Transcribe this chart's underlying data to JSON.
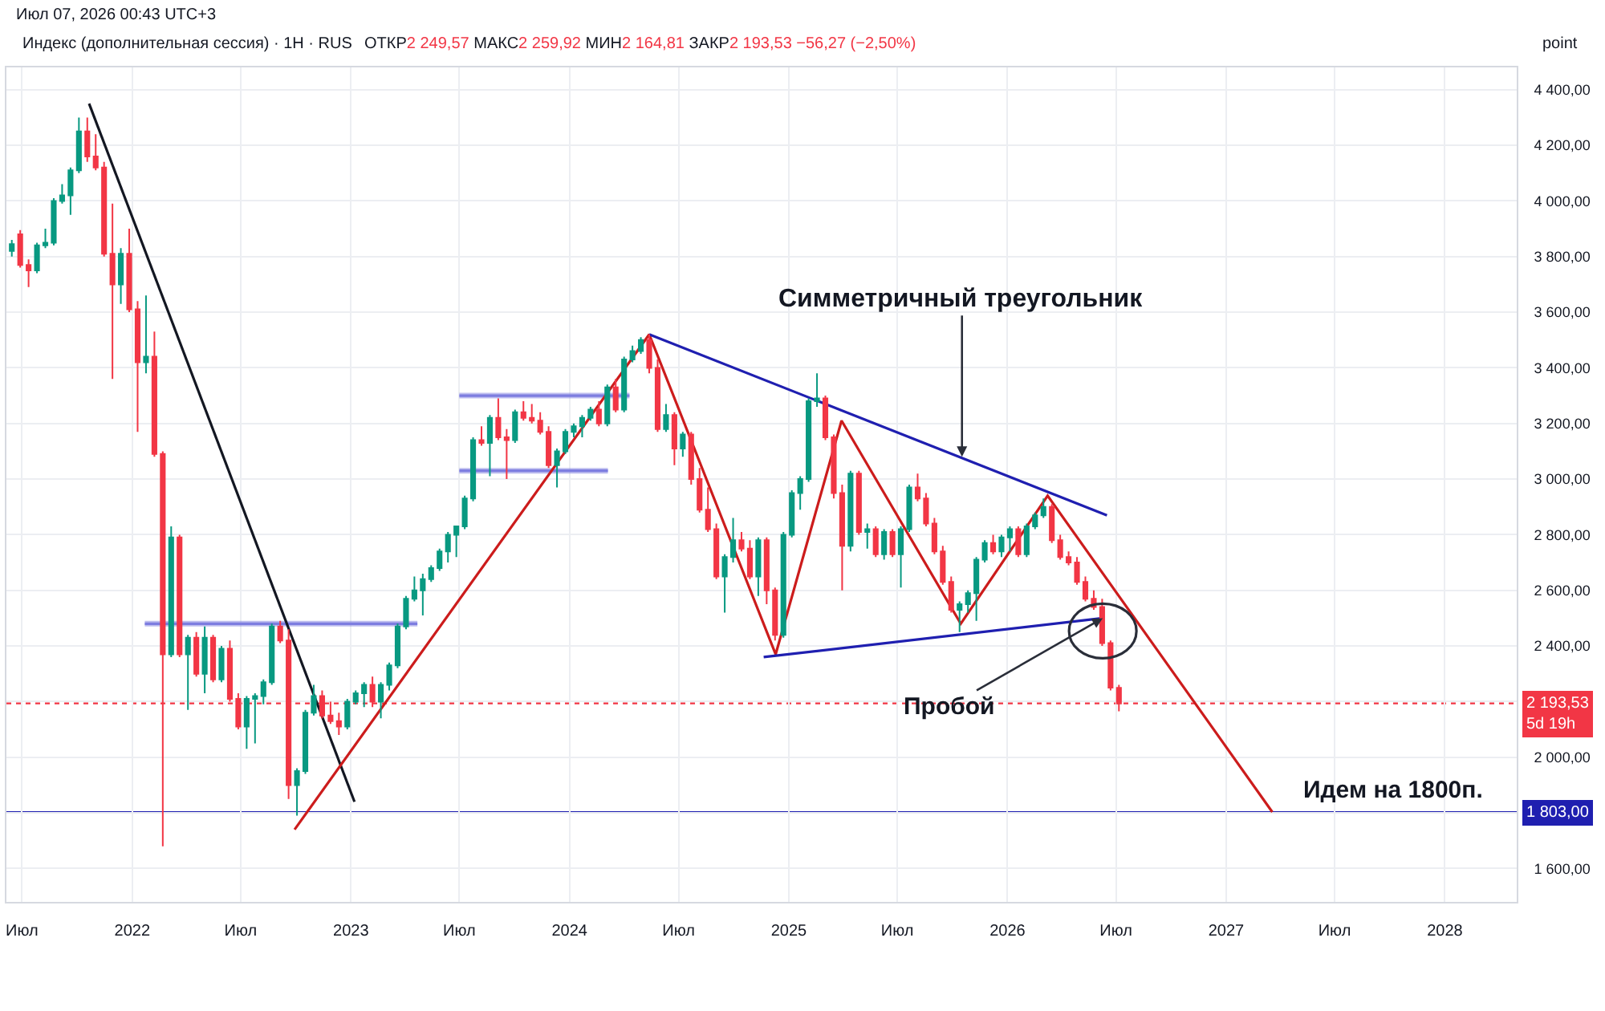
{
  "chart_data": {
    "type": "candlestick",
    "title": "Индекс (дополнительная сессия) · 1H · RUS",
    "subtitle": "ОТКР2 249,57 МАКС2 259,92 МИН2 164,81 ЗАКР2 193,53 −56,27 (−2,50%)",
    "colors": [
      "#089981",
      "#f23645",
      "#f23645",
      "#089981",
      "#089981",
      "#089981",
      "#089981",
      "#089981",
      "#089981",
      "#f23645",
      "#f23645",
      "#f23645",
      "#f23645",
      "#089981",
      "#f23645",
      "#f23645",
      "#089981",
      "#f23645",
      "#f23645",
      "#089981",
      "#f23645",
      "#089981",
      "#f23645",
      "#089981",
      "#f23645",
      "#089981",
      "#f23645",
      "#f23645",
      "#089981",
      "#089981",
      "#089981",
      "#089981",
      "#f23645",
      "#f23645",
      "#089981",
      "#089981",
      "#089981",
      "#f23645",
      "#f23645",
      "#f23645",
      "#089981",
      "#089981",
      "#089981",
      "#f23645",
      "#089981",
      "#089981",
      "#089981",
      "#089981",
      "#089981",
      "#089981",
      "#089981",
      "#089981",
      "#089981",
      "#089981",
      "#089981",
      "#089981",
      "#f23645",
      "#089981",
      "#f23645",
      "#f23645",
      "#089981",
      "#f23645",
      "#f23645",
      "#f23645",
      "#f23645",
      "#089981",
      "#089981",
      "#089981",
      "#089981",
      "#089981",
      "#f23645",
      "#089981",
      "#f23645",
      "#089981",
      "#089981",
      "#089981",
      "#f23645",
      "#f23645",
      "#089981",
      "#f23645",
      "#089981",
      "#f23645",
      "#f23645",
      "#f23645",
      "#f23645",
      "#089981",
      "#089981",
      "#f23645",
      "#f23645",
      "#089981",
      "#f23645",
      "#f23645",
      "#089981",
      "#089981",
      "#089981",
      "#089981",
      "#089981",
      "#f23645",
      "#f23645",
      "#f23645",
      "#089981",
      "#f23645",
      "#089981",
      "#f23645",
      "#089981",
      "#f23645",
      "#089981",
      "#089981",
      "#f23645",
      "#f23645",
      "#f23645",
      "#f23645",
      "#f23645",
      "#089981",
      "#089981",
      "#089981",
      "#089981",
      "#f23645",
      "#089981",
      "#089981",
      "#f23645",
      "#089981",
      "#089981",
      "#089981",
      "#f23645",
      "#f23645",
      "#f23645",
      "#f23645",
      "#f23645",
      "#f23645",
      "#f23645",
      "#f23645",
      "#f23645"
    ],
    "x": [
      "2021-06-14",
      "2021-06-28",
      "2021-07-12",
      "2021-07-26",
      "2021-08-09",
      "2021-08-23",
      "2021-09-06",
      "2021-09-20",
      "2021-10-04",
      "2021-10-18",
      "2021-11-01",
      "2021-11-15",
      "2021-11-29",
      "2021-12-13",
      "2021-12-27",
      "2022-01-10",
      "2022-01-24",
      "2022-02-07",
      "2022-02-21",
      "2022-03-07",
      "2022-03-21",
      "2022-04-04",
      "2022-04-18",
      "2022-05-02",
      "2022-05-16",
      "2022-05-30",
      "2022-06-13",
      "2022-06-27",
      "2022-07-11",
      "2022-07-25",
      "2022-08-08",
      "2022-08-22",
      "2022-09-05",
      "2022-09-19",
      "2022-10-03",
      "2022-10-17",
      "2022-10-31",
      "2022-11-14",
      "2022-11-28",
      "2022-12-12",
      "2022-12-26",
      "2023-01-09",
      "2023-01-23",
      "2023-02-06",
      "2023-02-20",
      "2023-03-06",
      "2023-03-20",
      "2023-04-03",
      "2023-04-17",
      "2023-05-01",
      "2023-05-15",
      "2023-05-29",
      "2023-06-12",
      "2023-06-26",
      "2023-07-10",
      "2023-07-24",
      "2023-08-07",
      "2023-08-21",
      "2023-09-04",
      "2023-09-18",
      "2023-10-02",
      "2023-10-16",
      "2023-10-30",
      "2023-11-13",
      "2023-11-27",
      "2023-12-11",
      "2023-12-25",
      "2024-01-08",
      "2024-01-22",
      "2024-02-05",
      "2024-02-19",
      "2024-03-04",
      "2024-03-18",
      "2024-04-01",
      "2024-04-15",
      "2024-04-29",
      "2024-05-13",
      "2024-05-27",
      "2024-06-10",
      "2024-06-24",
      "2024-07-08",
      "2024-07-22",
      "2024-08-05",
      "2024-08-19",
      "2024-09-02",
      "2024-09-16",
      "2024-09-30",
      "2024-10-14",
      "2024-10-28",
      "2024-11-11",
      "2024-11-25",
      "2024-12-09",
      "2024-12-23",
      "2025-01-06",
      "2025-01-20",
      "2025-02-03",
      "2025-02-17",
      "2025-03-03",
      "2025-03-17",
      "2025-03-31",
      "2025-04-14",
      "2025-04-28",
      "2025-05-12",
      "2025-05-26",
      "2025-06-09",
      "2025-06-23",
      "2025-07-07",
      "2025-07-21",
      "2025-08-04",
      "2025-08-18",
      "2025-09-01",
      "2025-09-15",
      "2025-09-29",
      "2025-10-13",
      "2025-10-27",
      "2025-11-10",
      "2025-11-24",
      "2025-12-08",
      "2025-12-22",
      "2026-01-05",
      "2026-01-19",
      "2026-02-02",
      "2026-02-16",
      "2026-03-02",
      "2026-03-16",
      "2026-03-30",
      "2026-04-13",
      "2026-04-27",
      "2026-05-11",
      "2026-05-25",
      "2026-06-08",
      "2026-06-22",
      "2026-07-06"
    ],
    "ohlc": [
      [
        3820,
        3860,
        3800,
        3845
      ],
      [
        3880,
        3895,
        3760,
        3770
      ],
      [
        3770,
        3790,
        3690,
        3750
      ],
      [
        3750,
        3850,
        3740,
        3840
      ],
      [
        3840,
        3900,
        3830,
        3850
      ],
      [
        3850,
        4010,
        3840,
        4000
      ],
      [
        4000,
        4060,
        3990,
        4020
      ],
      [
        4020,
        4120,
        3950,
        4110
      ],
      [
        4110,
        4300,
        4100,
        4250
      ],
      [
        4250,
        4300,
        4140,
        4160
      ],
      [
        4160,
        4240,
        4110,
        4120
      ],
      [
        4120,
        4140,
        3800,
        3810
      ],
      [
        3810,
        3990,
        3360,
        3700
      ],
      [
        3700,
        3830,
        3630,
        3810
      ],
      [
        3810,
        3900,
        3600,
        3610
      ],
      [
        3610,
        3640,
        3170,
        3420
      ],
      [
        3420,
        3660,
        3380,
        3440
      ],
      [
        3440,
        3530,
        3080,
        3090
      ],
      [
        3090,
        3100,
        1680,
        2370
      ],
      [
        2370,
        2830,
        2360,
        2790
      ],
      [
        2790,
        2800,
        2360,
        2370
      ],
      [
        2370,
        2440,
        2170,
        2430
      ],
      [
        2430,
        2450,
        2290,
        2300
      ],
      [
        2300,
        2470,
        2230,
        2430
      ],
      [
        2430,
        2440,
        2270,
        2280
      ],
      [
        2280,
        2400,
        2270,
        2390
      ],
      [
        2390,
        2420,
        2200,
        2210
      ],
      [
        2210,
        2230,
        2100,
        2110
      ],
      [
        2110,
        2220,
        2030,
        2210
      ],
      [
        2210,
        2230,
        2050,
        2220
      ],
      [
        2220,
        2280,
        2190,
        2270
      ],
      [
        2270,
        2480,
        2260,
        2470
      ],
      [
        2470,
        2490,
        2410,
        2420
      ],
      [
        2420,
        2460,
        1850,
        1900
      ],
      [
        1900,
        1960,
        1790,
        1950
      ],
      [
        1950,
        2170,
        1940,
        2160
      ],
      [
        2160,
        2260,
        2150,
        2220
      ],
      [
        2220,
        2240,
        2140,
        2150
      ],
      [
        2150,
        2200,
        2120,
        2130
      ],
      [
        2130,
        2160,
        2080,
        2110
      ],
      [
        2110,
        2210,
        2100,
        2200
      ],
      [
        2200,
        2240,
        2190,
        2230
      ],
      [
        2230,
        2270,
        2180,
        2260
      ],
      [
        2260,
        2290,
        2180,
        2200
      ],
      [
        2200,
        2270,
        2140,
        2260
      ],
      [
        2260,
        2340,
        2240,
        2330
      ],
      [
        2330,
        2480,
        2320,
        2470
      ],
      [
        2470,
        2580,
        2460,
        2570
      ],
      [
        2570,
        2650,
        2560,
        2600
      ],
      [
        2600,
        2660,
        2510,
        2640
      ],
      [
        2640,
        2690,
        2630,
        2680
      ],
      [
        2680,
        2750,
        2670,
        2740
      ],
      [
        2740,
        2810,
        2700,
        2800
      ],
      [
        2800,
        2830,
        2720,
        2830
      ],
      [
        2830,
        2940,
        2820,
        2930
      ],
      [
        2930,
        3150,
        2920,
        3140
      ],
      [
        3140,
        3190,
        3120,
        3130
      ],
      [
        3130,
        3230,
        3010,
        3220
      ],
      [
        3220,
        3290,
        3140,
        3150
      ],
      [
        3150,
        3180,
        3000,
        3140
      ],
      [
        3140,
        3250,
        3130,
        3240
      ],
      [
        3240,
        3280,
        3210,
        3220
      ],
      [
        3220,
        3270,
        3200,
        3210
      ],
      [
        3210,
        3240,
        3160,
        3170
      ],
      [
        3170,
        3190,
        3040,
        3050
      ],
      [
        3050,
        3110,
        2970,
        3100
      ],
      [
        3100,
        3180,
        3090,
        3170
      ],
      [
        3170,
        3200,
        3150,
        3190
      ],
      [
        3190,
        3230,
        3150,
        3220
      ],
      [
        3220,
        3260,
        3210,
        3250
      ],
      [
        3250,
        3280,
        3190,
        3200
      ],
      [
        3200,
        3340,
        3190,
        3330
      ],
      [
        3330,
        3360,
        3240,
        3250
      ],
      [
        3250,
        3440,
        3240,
        3430
      ],
      [
        3430,
        3480,
        3420,
        3460
      ],
      [
        3460,
        3510,
        3450,
        3500
      ],
      [
        3500,
        3520,
        3380,
        3400
      ],
      [
        3400,
        3430,
        3170,
        3180
      ],
      [
        3180,
        3270,
        3170,
        3230
      ],
      [
        3230,
        3240,
        3050,
        3110
      ],
      [
        3110,
        3170,
        3080,
        3160
      ],
      [
        3160,
        3170,
        2980,
        3000
      ],
      [
        3000,
        3040,
        2880,
        2890
      ],
      [
        2890,
        2970,
        2810,
        2820
      ],
      [
        2820,
        2840,
        2640,
        2650
      ],
      [
        2650,
        2730,
        2520,
        2720
      ],
      [
        2720,
        2860,
        2700,
        2780
      ],
      [
        2780,
        2810,
        2740,
        2750
      ],
      [
        2750,
        2780,
        2640,
        2650
      ],
      [
        2650,
        2790,
        2580,
        2780
      ],
      [
        2780,
        2790,
        2550,
        2600
      ],
      [
        2600,
        2610,
        2420,
        2440
      ],
      [
        2440,
        2810,
        2430,
        2800
      ],
      [
        2800,
        2960,
        2790,
        2950
      ],
      [
        2950,
        3010,
        2890,
        3000
      ],
      [
        3000,
        3290,
        2990,
        3280
      ],
      [
        3280,
        3380,
        3260,
        3290
      ],
      [
        3290,
        3300,
        3140,
        3150
      ],
      [
        3150,
        3160,
        2930,
        2950
      ],
      [
        2950,
        2980,
        2600,
        2760
      ],
      [
        2760,
        3030,
        2740,
        3020
      ],
      [
        3020,
        3030,
        2800,
        2810
      ],
      [
        2810,
        2840,
        2750,
        2820
      ],
      [
        2820,
        2830,
        2720,
        2730
      ],
      [
        2730,
        2820,
        2710,
        2810
      ],
      [
        2810,
        2820,
        2720,
        2730
      ],
      [
        2730,
        2830,
        2610,
        2820
      ],
      [
        2820,
        2980,
        2810,
        2970
      ],
      [
        2970,
        3020,
        2920,
        2930
      ],
      [
        2930,
        2950,
        2830,
        2840
      ],
      [
        2840,
        2860,
        2730,
        2740
      ],
      [
        2740,
        2760,
        2620,
        2630
      ],
      [
        2630,
        2650,
        2520,
        2530
      ],
      [
        2530,
        2560,
        2450,
        2550
      ],
      [
        2550,
        2600,
        2520,
        2590
      ],
      [
        2590,
        2720,
        2490,
        2710
      ],
      [
        2710,
        2780,
        2700,
        2770
      ],
      [
        2770,
        2800,
        2730,
        2740
      ],
      [
        2740,
        2800,
        2720,
        2790
      ],
      [
        2790,
        2830,
        2740,
        2820
      ],
      [
        2820,
        2830,
        2720,
        2730
      ],
      [
        2730,
        2840,
        2720,
        2830
      ],
      [
        2830,
        2880,
        2820,
        2870
      ],
      [
        2870,
        2930,
        2860,
        2900
      ],
      [
        2900,
        2910,
        2770,
        2780
      ],
      [
        2780,
        2800,
        2710,
        2720
      ],
      [
        2720,
        2740,
        2690,
        2700
      ],
      [
        2700,
        2720,
        2620,
        2630
      ],
      [
        2630,
        2650,
        2560,
        2570
      ],
      [
        2570,
        2600,
        2530,
        2540
      ],
      [
        2540,
        2570,
        2400,
        2410
      ],
      [
        2410,
        2420,
        2240,
        2250
      ],
      [
        2249.57,
        2259.92,
        2164.81,
        2193.53
      ]
    ],
    "series": [
      {
        "type": "line",
        "color": "#7d7de0",
        "x": [
          "2022-01-22",
          "2023-04-22"
        ],
        "values": [
          2480,
          2480
        ],
        "lower": [
          2470,
          2470
        ],
        "upper": [
          2490,
          2490
        ]
      },
      {
        "type": "line",
        "color": "#7d7de0",
        "x": [
          "2023-07-01",
          "2024-04-10"
        ],
        "values": [
          3300,
          3300
        ],
        "lower": [
          3290,
          3290
        ],
        "upper": [
          3310,
          3310
        ]
      },
      {
        "type": "line",
        "color": "#7d7de0",
        "x": [
          "2023-07-01",
          "2024-03-05"
        ],
        "values": [
          3030,
          3030
        ],
        "lower": [
          3020,
          3020
        ],
        "upper": [
          3040,
          3040
        ]
      },
      {
        "type": "line",
        "color": "#131722",
        "x": [
          "2021-10-21",
          "2023-01-07"
        ],
        "values": [
          4350,
          1840
        ]
      },
      {
        "type": "line",
        "color": "#cc1c1c",
        "x": [
          "2022-09-29",
          "2024-05-13",
          "2024-12-10",
          "2025-03-30",
          "2025-10-15",
          "2026-03-09",
          "2027-03-19"
        ],
        "values": [
          1740,
          3520,
          2370,
          3210,
          2480,
          2940,
          1803
        ]
      },
      {
        "type": "line",
        "color": "#1f1fb0",
        "x": [
          "2024-05-13",
          "2026-06-16"
        ],
        "values": [
          3520,
          2870
        ]
      },
      {
        "type": "line",
        "color": "#1f1fb0",
        "x": [
          "2024-11-20",
          "2026-06-09"
        ],
        "values": [
          2360,
          2500
        ]
      }
    ],
    "ref_lines": [
      {
        "axis": "y",
        "value": 2193.53,
        "label": "2 193,53\n5d 19h",
        "color": "#f23645",
        "line_style": "dotted"
      },
      {
        "axis": "y",
        "value": 1803,
        "label": "1 803,00",
        "color": "#1f1fb0",
        "line_style": "solid"
      }
    ],
    "annotations": [
      "Июл 07, 2026 00:43 UTC+3",
      "point",
      {
        "text": "Симметричный треугольник",
        "x": "2025-10-17",
        "y": 3080
      },
      {
        "text": "Пробой",
        "x": "2026-06-09",
        "y": 2500
      },
      {
        "text": "Идем на 1800п.",
        "x": "2027-10-07",
        "y": 1803
      }
    ],
    "xlim": [
      "2021-06-05",
      "2028-04-30"
    ],
    "xticks": [
      {
        "value": "2021-07-01",
        "label": "Июл"
      },
      {
        "value": "2022-01-01",
        "label": "2022"
      },
      {
        "value": "2022-07-01",
        "label": "Июл"
      },
      {
        "value": "2023-01-01",
        "label": "2023"
      },
      {
        "value": "2023-07-01",
        "label": "Июл"
      },
      {
        "value": "2024-01-01",
        "label": "2024"
      },
      {
        "value": "2024-07-01",
        "label": "Июл"
      },
      {
        "value": "2025-01-01",
        "label": "2025"
      },
      {
        "value": "2025-07-01",
        "label": "Июл"
      },
      {
        "value": "2026-01-01",
        "label": "2026"
      },
      {
        "value": "2026-07-01",
        "label": "Июл"
      },
      {
        "value": "2027-01-01",
        "label": "2027"
      },
      {
        "value": "2027-07-01",
        "label": "Июл"
      },
      {
        "value": "2028-01-01",
        "label": "2028"
      }
    ],
    "ylim": [
      1480,
      4480
    ],
    "yticks": [
      {
        "value": 1600,
        "label": "1 600,00"
      },
      {
        "value": 1800,
        "label": null
      },
      {
        "value": 2000,
        "label": "2 000,00"
      },
      {
        "value": 2200,
        "label": null
      },
      {
        "value": 2400,
        "label": "2 400,00"
      },
      {
        "value": 2600,
        "label": "2 600,00"
      },
      {
        "value": 2800,
        "label": "2 800,00"
      },
      {
        "value": 3000,
        "label": "3 000,00"
      },
      {
        "value": 3200,
        "label": "3 200,00"
      },
      {
        "value": 3400,
        "label": "3 400,00"
      },
      {
        "value": 3600,
        "label": "3 600,00"
      },
      {
        "value": 3800,
        "label": "3 800,00"
      },
      {
        "value": 4000,
        "label": "4 000,00"
      },
      {
        "value": 4200,
        "label": "4 200,00"
      },
      {
        "value": 4400,
        "label": "4 400,00"
      }
    ],
    "grid": true
  }
}
